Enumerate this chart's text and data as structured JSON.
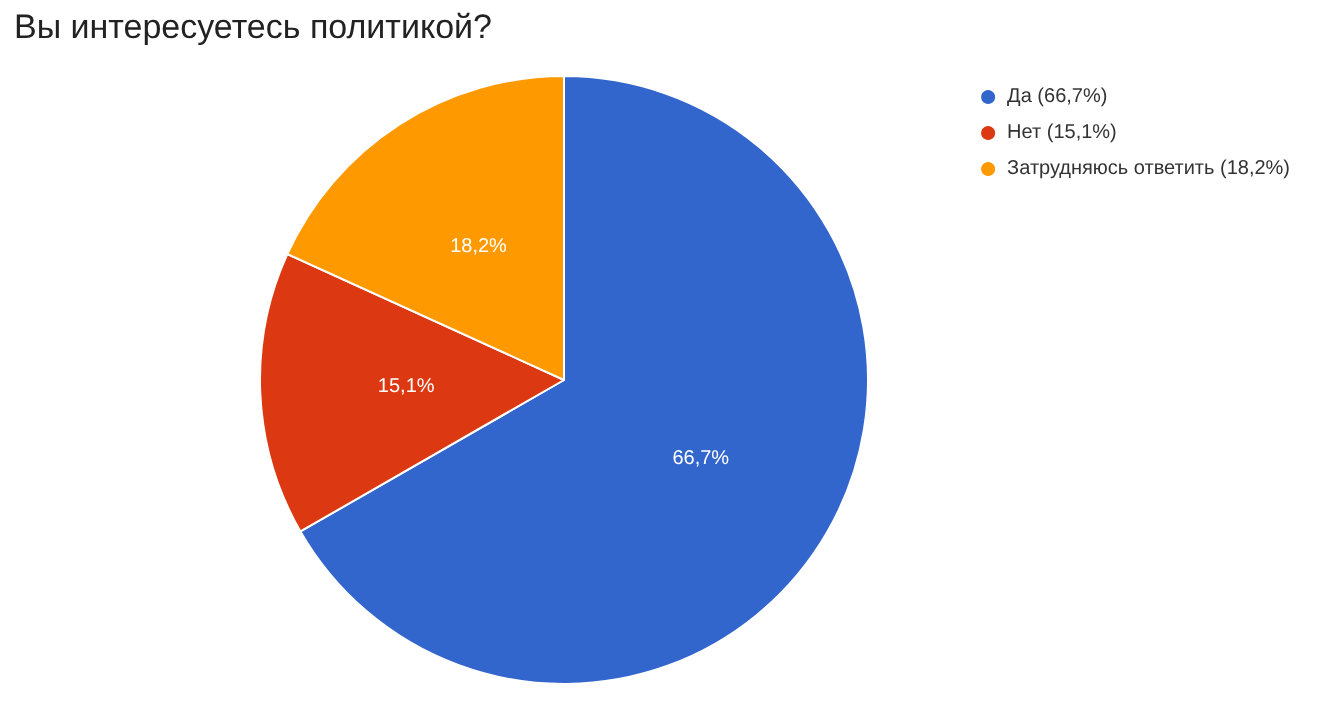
{
  "chart_data": {
    "type": "pie",
    "title": "Вы интересуетесь политикой?",
    "categories": [
      "Да (66,7%)",
      "Нет (15,1%)",
      "Затрудняюсь ответить (18,2%)"
    ],
    "values": [
      66.7,
      15.1,
      18.2
    ],
    "colors": [
      "#3366cc",
      "#dc3912",
      "#ff9900"
    ],
    "value_labels": [
      "66,7%",
      "15,1%",
      "18,2%"
    ],
    "legend": "top right"
  }
}
